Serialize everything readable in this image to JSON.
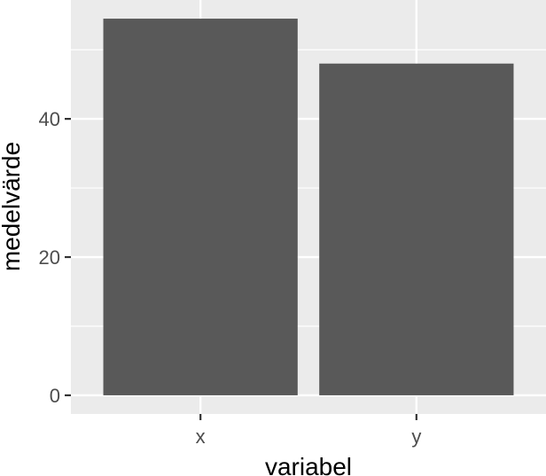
{
  "chart_data": {
    "type": "bar",
    "categories": [
      "x",
      "y"
    ],
    "values": [
      54.5,
      48.0
    ],
    "title": "",
    "xlabel": "variabel",
    "ylabel": "medelvärde",
    "ylim": [
      -2.7,
      57.2
    ],
    "yticks": [
      0,
      20,
      40
    ],
    "ytick_labels": [
      "0",
      "20",
      "40"
    ],
    "grid": true,
    "legend": "none"
  },
  "colors": {
    "panel_background": "#ebebeb",
    "grid_major": "#ffffff",
    "bar_fill": "#595959",
    "tick_color": "#333333",
    "tick_label": "#4d4d4d"
  }
}
